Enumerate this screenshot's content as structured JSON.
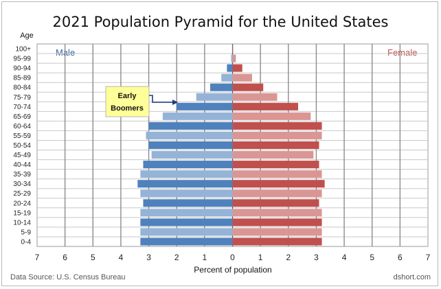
{
  "chart_data": {
    "type": "bar",
    "orientation": "horizontal",
    "title": "2021 Population Pyramid for the United States",
    "xlabel": "Percent of population",
    "ylabel": "Age",
    "xlim": [
      -7,
      7
    ],
    "x_tick_labels": [
      "7",
      "6",
      "5",
      "4",
      "3",
      "2",
      "1",
      "0",
      "1",
      "2",
      "3",
      "4",
      "5",
      "6",
      "7"
    ],
    "grid": true,
    "categories": [
      "0-4",
      "5-9",
      "10-14",
      "15-19",
      "20-24",
      "25-29",
      "30-34",
      "35-39",
      "40-44",
      "45-49",
      "50-54",
      "55-59",
      "60-64",
      "65-69",
      "70-74",
      "75-79",
      "80-84",
      "85-89",
      "90-94",
      "95-99",
      "100+"
    ],
    "series": [
      {
        "name": "Male",
        "side": "left",
        "color_light": "#95b3d7",
        "color_dark": "#4f81bd",
        "values": [
          3.3,
          3.3,
          3.3,
          3.3,
          3.2,
          3.3,
          3.4,
          3.3,
          3.2,
          2.9,
          3.0,
          3.1,
          3.0,
          2.5,
          2.0,
          1.3,
          0.8,
          0.4,
          0.2,
          0.05,
          0.01
        ]
      },
      {
        "name": "Female",
        "side": "right",
        "color_light": "#da9694",
        "color_dark": "#c0504d",
        "values": [
          3.2,
          3.2,
          3.2,
          3.2,
          3.1,
          3.2,
          3.3,
          3.2,
          3.1,
          2.9,
          3.1,
          3.2,
          3.2,
          2.8,
          2.35,
          1.6,
          1.1,
          0.7,
          0.35,
          0.12,
          0.02
        ]
      }
    ],
    "annotations": [
      {
        "text": [
          "Early",
          "Boomers"
        ],
        "points_to": "70-74"
      }
    ],
    "source": "Data Source: U.S. Census Bureau",
    "credit": "dshort.com"
  }
}
